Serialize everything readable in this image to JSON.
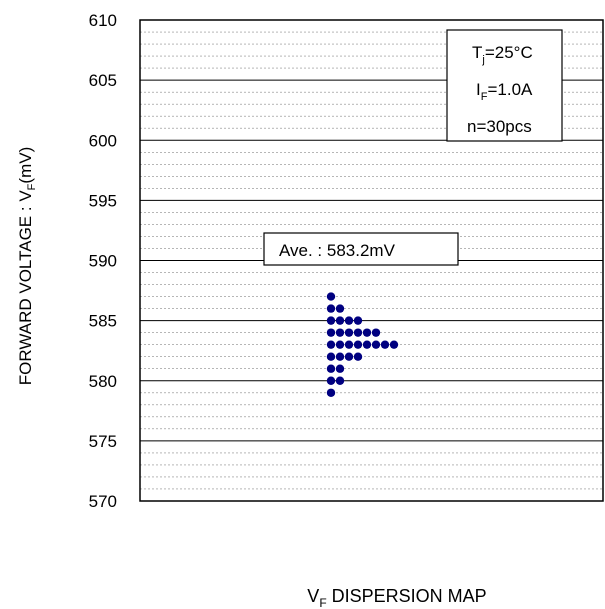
{
  "chart_data": {
    "type": "scatter",
    "xlabel": {
      "main": "V",
      "sub": "F",
      "rest": " DISPERSION MAP"
    },
    "ylabel": {
      "main": "FORWARD VOLTAGE : V",
      "sub": "F",
      "rest": "(mV)"
    },
    "ylim": [
      570,
      610
    ],
    "yticks": [
      "570",
      "575",
      "580",
      "585",
      "590",
      "595",
      "600",
      "605",
      "610"
    ],
    "grid": true,
    "conditions": {
      "tj": {
        "main": "T",
        "sub": "j",
        "rest": "=25°C"
      },
      "if": {
        "main": "I",
        "sub": "F",
        "rest": "=1.0A"
      },
      "n": "n=30pcs"
    },
    "average_label": "Ave. : 583.2mV",
    "marker_color": "#000080",
    "distribution": [
      {
        "y": 587,
        "count": 1
      },
      {
        "y": 586,
        "count": 2
      },
      {
        "y": 585,
        "count": 4
      },
      {
        "y": 584,
        "count": 6
      },
      {
        "y": 583,
        "count": 8
      },
      {
        "y": 582,
        "count": 4
      },
      {
        "y": 581,
        "count": 2
      },
      {
        "y": 580,
        "count": 2
      },
      {
        "y": 579,
        "count": 1
      }
    ]
  }
}
